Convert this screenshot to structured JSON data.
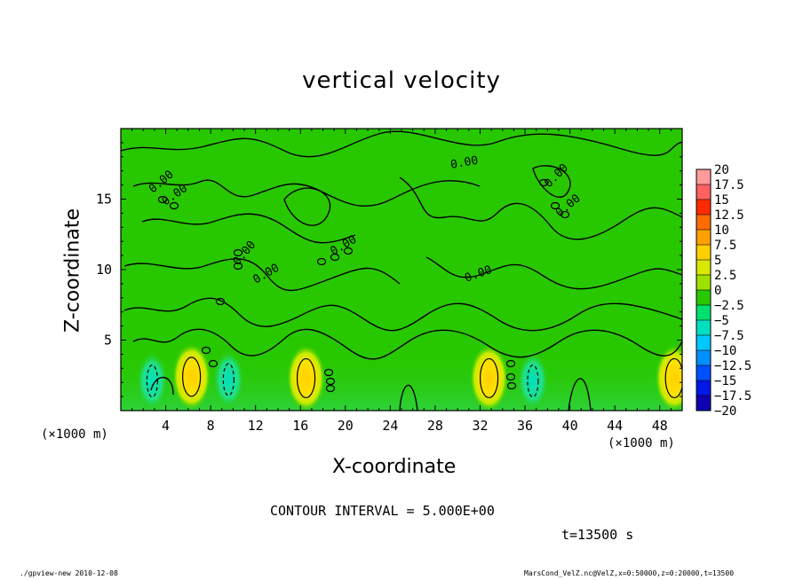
{
  "chart_data": {
    "type": "heatmap",
    "title": "vertical velocity",
    "xlabel": "X-coordinate",
    "ylabel": "Z-coordinate",
    "x_unit": "(×1000 m)",
    "x_ticks": [
      "4",
      "8",
      "12",
      "16",
      "20",
      "24",
      "28",
      "32",
      "36",
      "40",
      "44",
      "48"
    ],
    "y_ticks": [
      "5",
      "10",
      "15"
    ],
    "xlim": [
      0,
      50
    ],
    "ylim": [
      0,
      20
    ],
    "background_value": 0,
    "contour_interval_text": "CONTOUR INTERVAL = 5.000E+00",
    "contour_labels": [
      "0.00",
      "0.00",
      "0.00",
      "0.00",
      "0.00",
      "0.00",
      "0.00",
      "0.00",
      "0.00"
    ],
    "colorbar": {
      "levels": [
        "20",
        "17.5",
        "15",
        "12.5",
        "10",
        "7.5",
        "5",
        "2.5",
        "0",
        "-2.5",
        "-5",
        "-7.5",
        "-10",
        "-12.5",
        "-15",
        "-17.5",
        "-20"
      ],
      "colors": [
        "#ff9a9a",
        "#ff6060",
        "#ff2a00",
        "#ff6a00",
        "#ffa000",
        "#ffd000",
        "#d8e800",
        "#9ee000",
        "#28c800",
        "#00e070",
        "#00e0c0",
        "#00c8ff",
        "#0090ff",
        "#0050ff",
        "#0018e8",
        "#1000b0",
        "#6a10c0"
      ]
    },
    "features": [
      {
        "type": "updraft",
        "x": 6.3,
        "z": 2.4,
        "value": 7.5
      },
      {
        "type": "updraft",
        "x": 16.5,
        "z": 2.3,
        "value": 7.5
      },
      {
        "type": "updraft",
        "x": 32.8,
        "z": 2.3,
        "value": 7.5
      },
      {
        "type": "updraft",
        "x": 49.3,
        "z": 2.3,
        "value": 5
      },
      {
        "type": "downdraft",
        "x": 2.8,
        "z": 2.1,
        "value": -5
      },
      {
        "type": "downdraft",
        "x": 9.6,
        "z": 2.2,
        "value": -5
      },
      {
        "type": "downdraft",
        "x": 36.7,
        "z": 2.1,
        "value": -5
      }
    ]
  },
  "time_label": "t=13500 s",
  "footer_left": "./gpview-new  2010-12-08",
  "footer_right": "MarsCond_VelZ.nc@VelZ,x=0:50000,z=0:20000,t=13500"
}
